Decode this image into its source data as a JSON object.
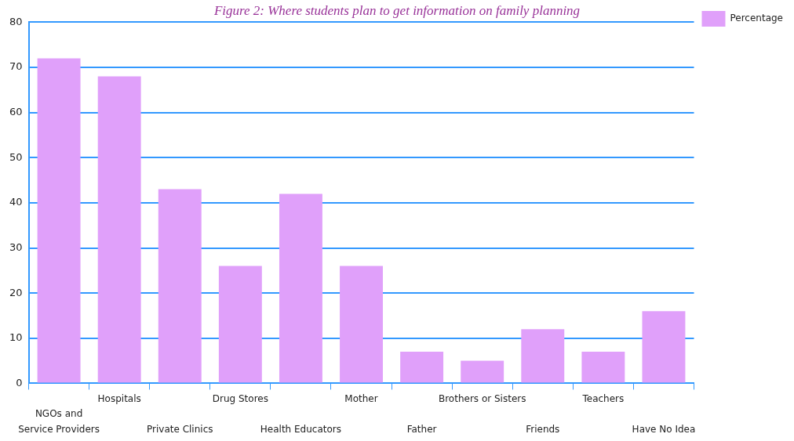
{
  "chart_data": {
    "type": "bar",
    "title": "Figure 2: Where students plan to get information on family planning",
    "categories": [
      "NGOs and Service Providers",
      "Hospitals",
      "Private Clinics",
      "Drug Stores",
      "Health Educators",
      "Mother",
      "Father",
      "Brothers or Sisters",
      "Friends",
      "Teachers",
      "Have No Idea"
    ],
    "series": [
      {
        "name": "Percentage",
        "color": "#e0a0fa",
        "values": [
          72,
          68,
          43,
          26,
          42,
          26,
          7,
          5,
          12,
          7,
          16
        ]
      }
    ],
    "ylim": [
      0,
      80
    ],
    "yticks": [
      0,
      10,
      20,
      30,
      40,
      50,
      60,
      70,
      80
    ],
    "grid": "y",
    "legend": "top right"
  }
}
